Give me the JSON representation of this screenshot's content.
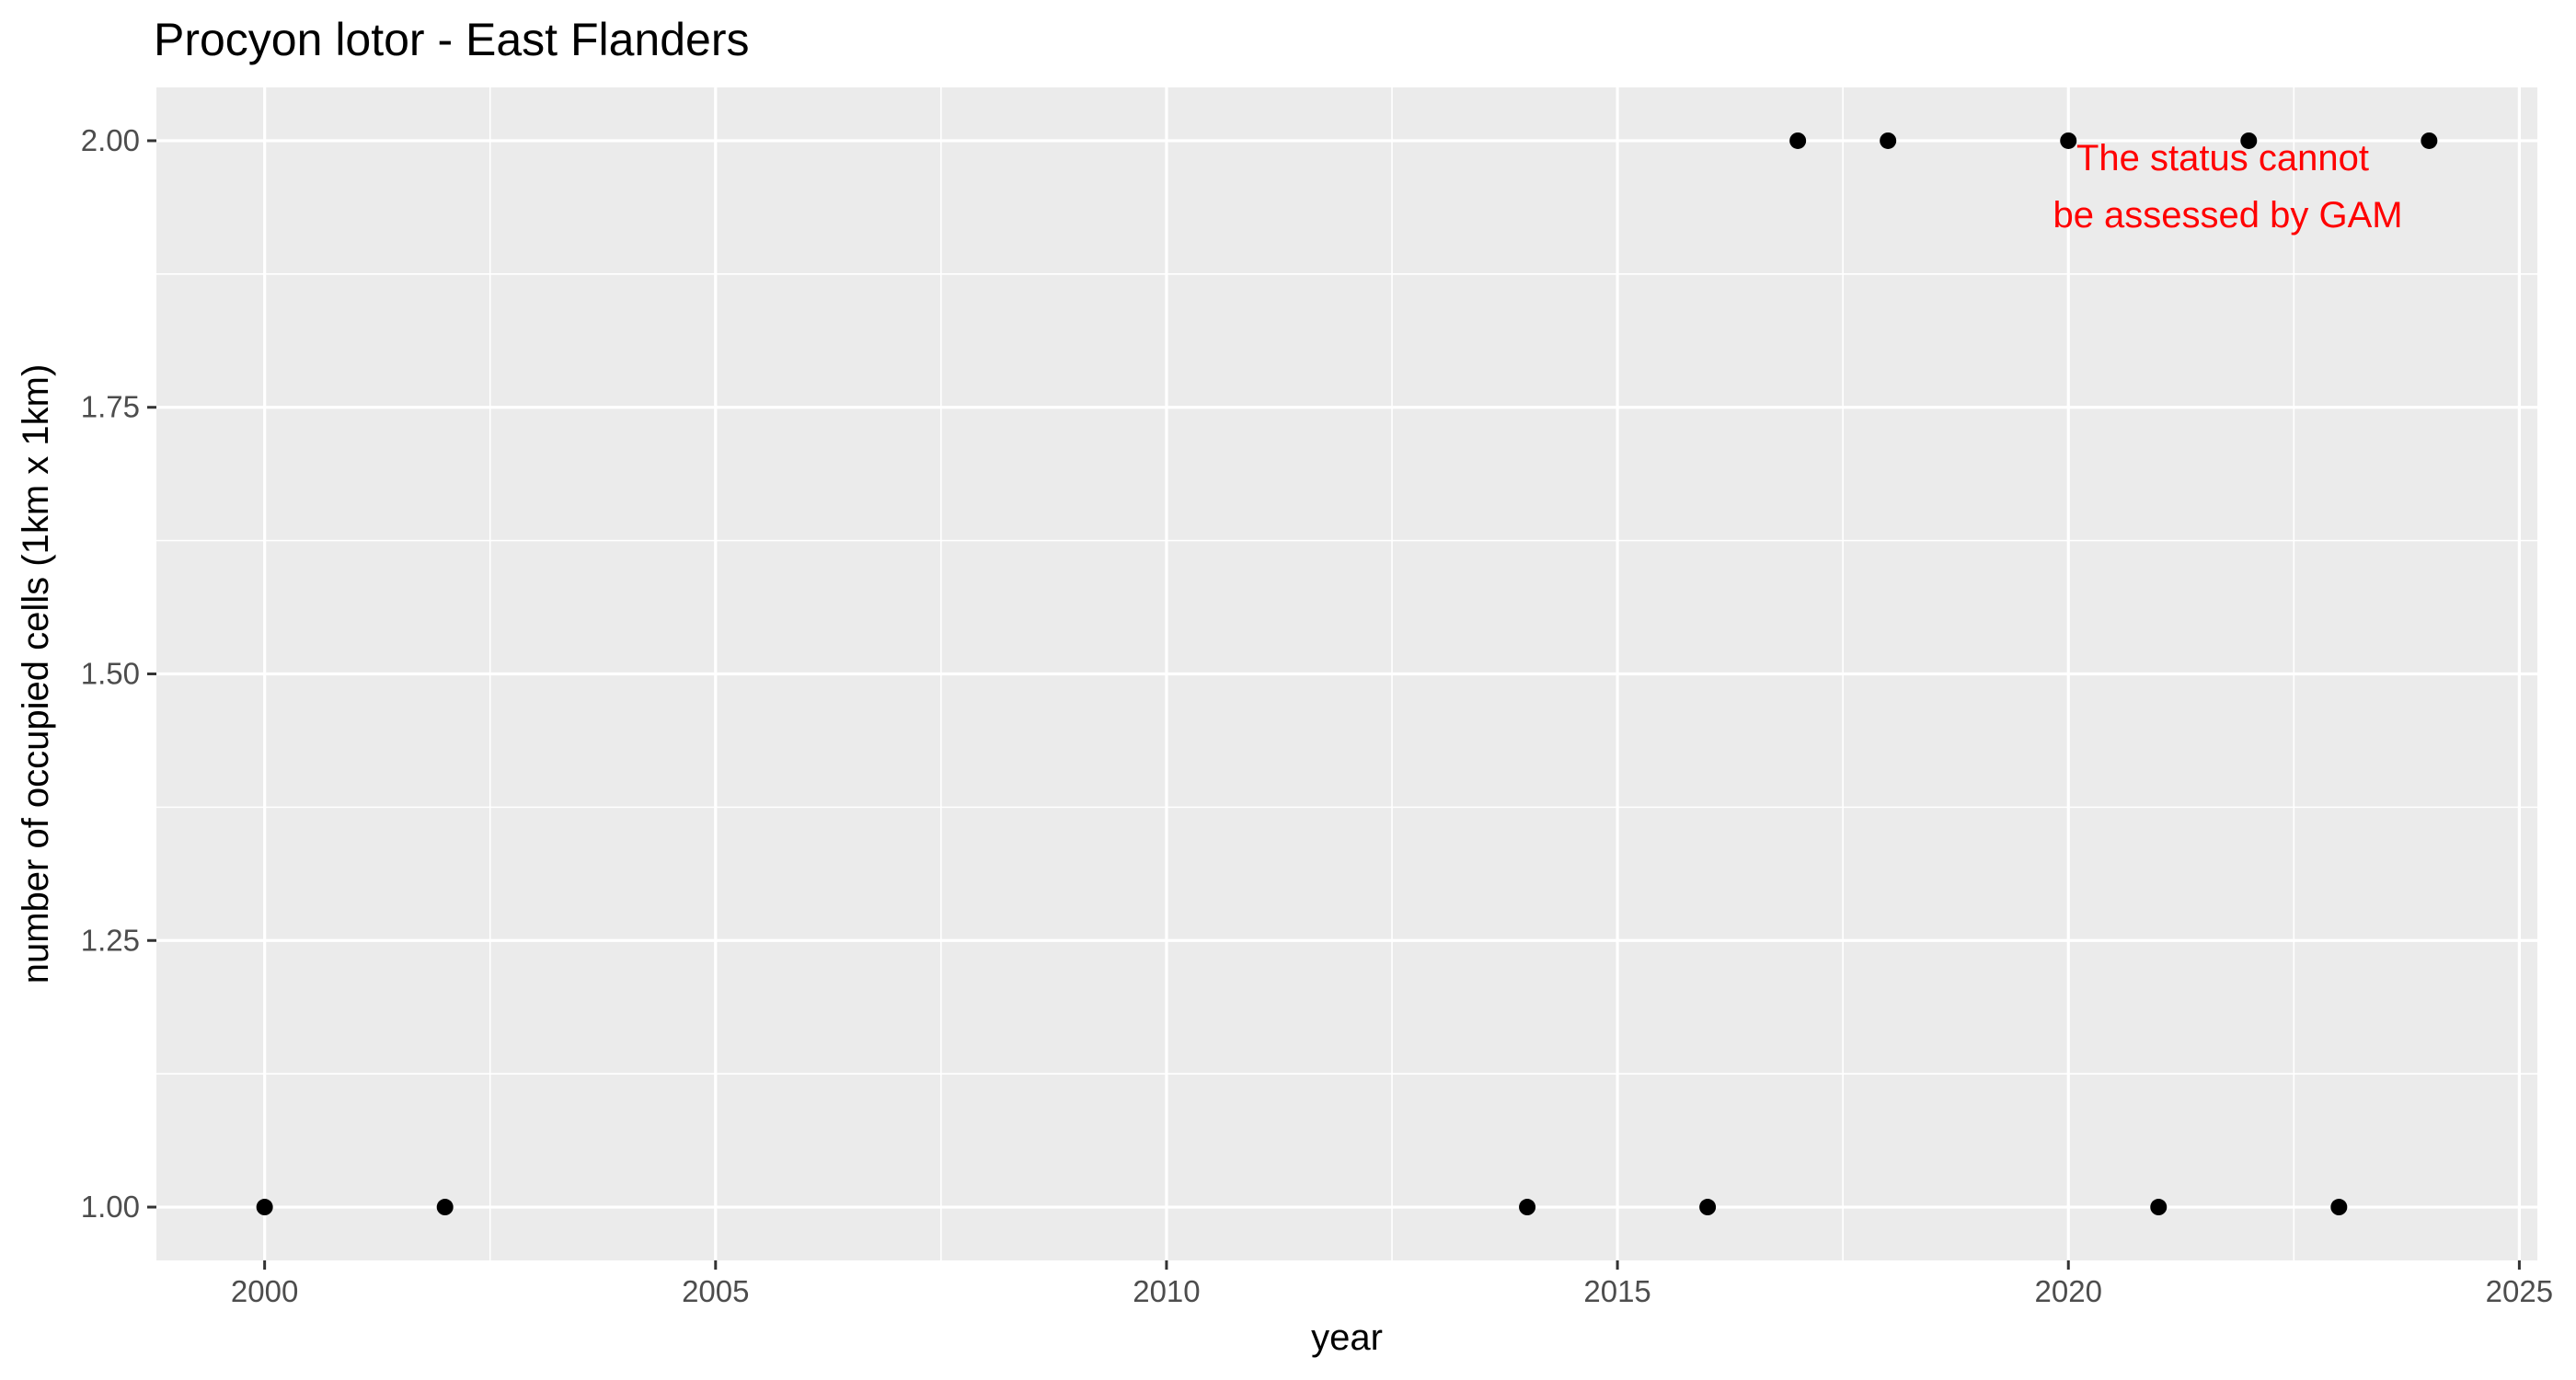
{
  "chart_data": {
    "type": "scatter",
    "title": "Procyon lotor - East Flanders",
    "xlabel": "year",
    "ylabel": "number of occupied cells (1km x 1km)",
    "x": [
      2000,
      2002,
      2014,
      2016,
      2017,
      2018,
      2020,
      2021,
      2022,
      2023,
      2024
    ],
    "y": [
      1,
      1,
      1,
      1,
      2,
      2,
      2,
      1,
      2,
      1,
      2
    ],
    "xlim": [
      1998.8,
      2025.2
    ],
    "ylim": [
      0.95,
      2.05
    ],
    "xticks": [
      2000,
      2005,
      2010,
      2015,
      2020,
      2025
    ],
    "xtick_labels": [
      "2000",
      "2005",
      "2010",
      "2015",
      "2020",
      "2025"
    ],
    "yticks": [
      1.0,
      1.25,
      1.5,
      1.75,
      2.0
    ],
    "ytick_labels": [
      "1.00",
      "1.25",
      "1.50",
      "1.75",
      "2.00"
    ],
    "grid": true,
    "legend": "none",
    "annotation": {
      "lines": [
        "The status cannot",
        "be assessed by GAM"
      ],
      "color": "#ff0000"
    },
    "colors": {
      "panel": "#ebebeb",
      "grid": "#ffffff",
      "point": "#000000"
    }
  }
}
